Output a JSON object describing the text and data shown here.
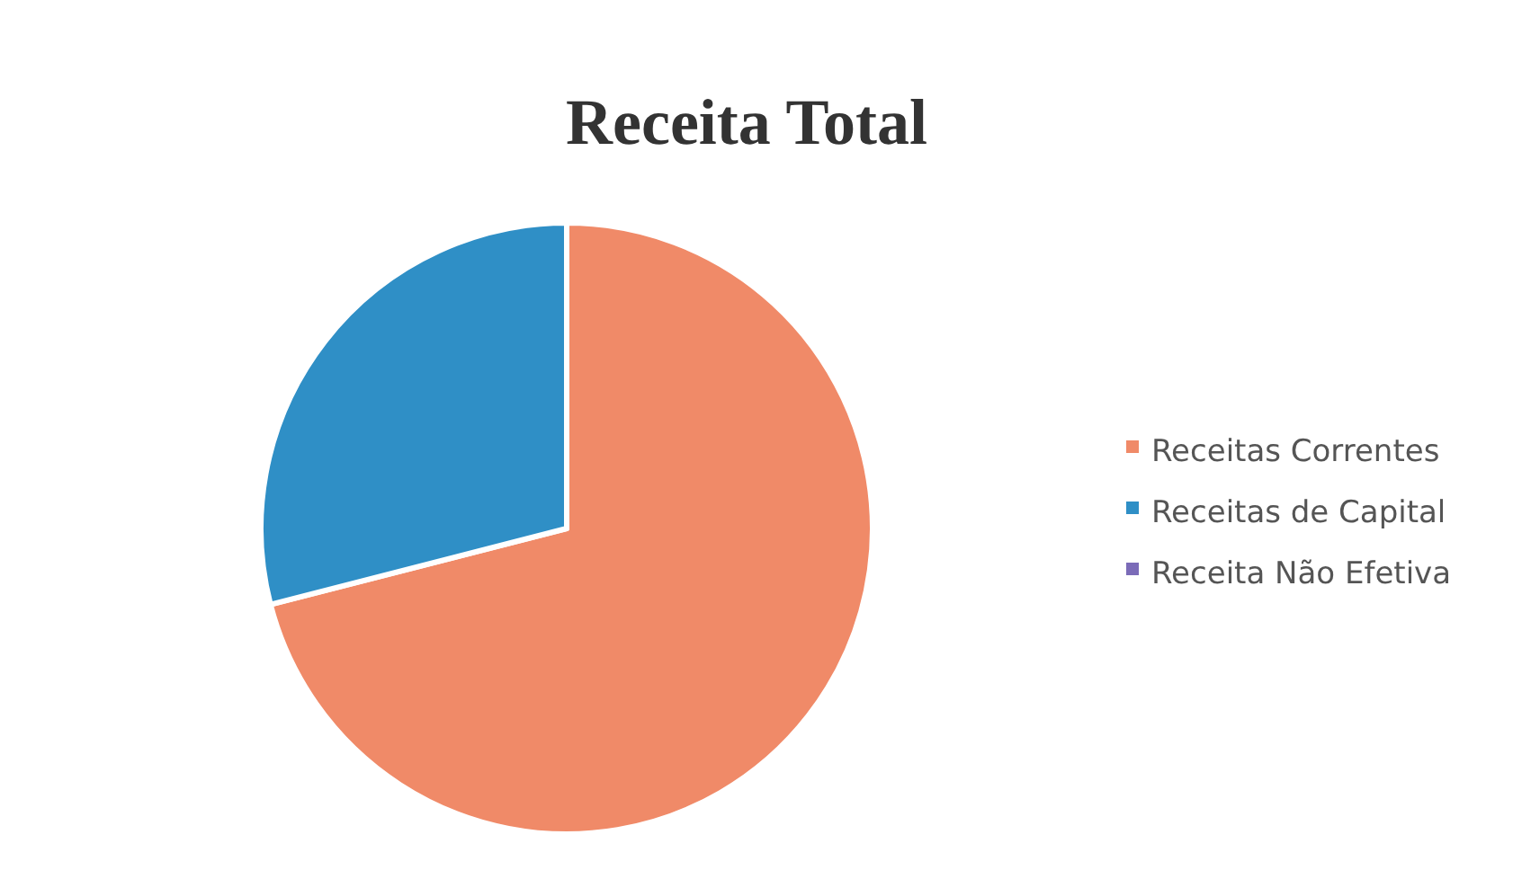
{
  "chart_data": {
    "type": "pie",
    "title": "Receita Total",
    "categories": [
      "Receitas Correntes",
      "Receitas de Capital",
      "Receita Não Efetiva"
    ],
    "values": [
      71,
      29,
      0
    ],
    "colors": [
      "#f08a68",
      "#2f8fc6",
      "#7b6bb8"
    ],
    "legend": "right"
  }
}
